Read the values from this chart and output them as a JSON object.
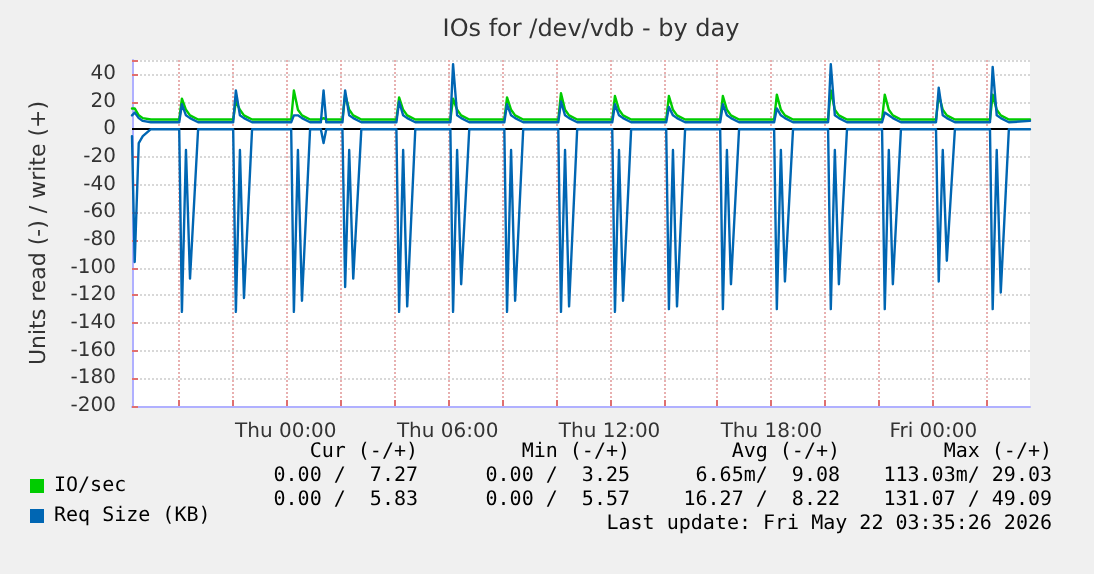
{
  "chart_data": {
    "type": "line",
    "title": "IOs for /dev/vdb - by day",
    "ylabel": "Units read (-) / write (+)",
    "x": [
      "2026-05-20T18:18",
      "2026-05-20T18:24",
      "2026-05-20T18:33",
      "2026-05-20T18:42",
      "2026-05-20T19:00",
      "2026-05-20T20:03",
      "2026-05-20T20:09",
      "2026-05-20T20:18",
      "2026-05-20T20:27",
      "2026-05-20T20:45",
      "2026-05-20T22:03",
      "2026-05-20T22:09",
      "2026-05-20T22:18",
      "2026-05-20T22:27",
      "2026-05-20T22:45",
      "2026-05-21T00:12",
      "2026-05-21T00:18",
      "2026-05-21T00:27",
      "2026-05-21T00:36",
      "2026-05-21T00:54",
      "2026-05-21T01:18",
      "2026-05-21T01:24",
      "2026-05-21T01:30",
      "2026-05-21T02:06",
      "2026-05-21T02:12",
      "2026-05-21T02:21",
      "2026-05-21T02:30",
      "2026-05-21T02:48",
      "2026-05-21T04:06",
      "2026-05-21T04:12",
      "2026-05-21T04:21",
      "2026-05-21T04:30",
      "2026-05-21T04:48",
      "2026-05-21T06:06",
      "2026-05-21T06:12",
      "2026-05-21T06:21",
      "2026-05-21T06:30",
      "2026-05-21T06:48",
      "2026-05-21T08:06",
      "2026-05-21T08:12",
      "2026-05-21T08:21",
      "2026-05-21T08:30",
      "2026-05-21T08:48",
      "2026-05-21T10:06",
      "2026-05-21T10:12",
      "2026-05-21T10:21",
      "2026-05-21T10:30",
      "2026-05-21T10:48",
      "2026-05-21T12:06",
      "2026-05-21T12:12",
      "2026-05-21T12:21",
      "2026-05-21T12:30",
      "2026-05-21T12:48",
      "2026-05-21T14:06",
      "2026-05-21T14:12",
      "2026-05-21T14:21",
      "2026-05-21T14:30",
      "2026-05-21T14:48",
      "2026-05-21T16:06",
      "2026-05-21T16:12",
      "2026-05-21T16:21",
      "2026-05-21T16:30",
      "2026-05-21T16:48",
      "2026-05-21T18:06",
      "2026-05-21T18:12",
      "2026-05-21T18:21",
      "2026-05-21T18:30",
      "2026-05-21T18:48",
      "2026-05-21T20:06",
      "2026-05-21T20:12",
      "2026-05-21T20:21",
      "2026-05-21T20:30",
      "2026-05-21T20:48",
      "2026-05-21T22:06",
      "2026-05-21T22:12",
      "2026-05-21T22:21",
      "2026-05-21T22:30",
      "2026-05-21T22:48",
      "2026-05-22T00:06",
      "2026-05-22T00:12",
      "2026-05-22T00:21",
      "2026-05-22T00:30",
      "2026-05-22T00:48",
      "2026-05-22T02:06",
      "2026-05-22T02:12",
      "2026-05-22T02:21",
      "2026-05-22T02:30",
      "2026-05-22T02:48",
      "2026-05-22T03:35"
    ],
    "series": [
      {
        "name": "IO/sec",
        "color": "#00cc00",
        "values": [
          15,
          15,
          10,
          8,
          7,
          7,
          22,
          14,
          10,
          7,
          7,
          20,
          14,
          10,
          7,
          7,
          28,
          14,
          10,
          7,
          7,
          8,
          7,
          7,
          25,
          14,
          10,
          7,
          7,
          23,
          14,
          10,
          7,
          7,
          22,
          14,
          10,
          7,
          7,
          23,
          14,
          10,
          7,
          7,
          26,
          14,
          10,
          7,
          7,
          24,
          14,
          10,
          7,
          7,
          24,
          14,
          10,
          7,
          7,
          24,
          14,
          10,
          7,
          7,
          25,
          14,
          10,
          7,
          7,
          28,
          14,
          10,
          7,
          7,
          25,
          14,
          10,
          7,
          7,
          25,
          14,
          10,
          7,
          7,
          25,
          14,
          10,
          7,
          7
        ]
      },
      {
        "name": "Req Size (KB)",
        "color": "#0066b3",
        "values": [
          10,
          12,
          8,
          6,
          5,
          5,
          18,
          10,
          8,
          5,
          5,
          28,
          10,
          8,
          5,
          5,
          10,
          10,
          8,
          5,
          5,
          28,
          5,
          5,
          28,
          10,
          8,
          5,
          5,
          20,
          10,
          8,
          5,
          5,
          47,
          10,
          8,
          5,
          5,
          18,
          10,
          8,
          5,
          5,
          20,
          10,
          8,
          5,
          5,
          18,
          10,
          8,
          5,
          5,
          16,
          10,
          8,
          5,
          5,
          18,
          10,
          8,
          5,
          5,
          15,
          10,
          8,
          5,
          5,
          47,
          10,
          8,
          5,
          5,
          12,
          10,
          8,
          5,
          5,
          30,
          10,
          8,
          5,
          5,
          45,
          10,
          8,
          5,
          6
        ]
      },
      {
        "color": "#0066b3",
        "values": [
          -5,
          -96,
          -10,
          -5,
          0,
          0,
          -132,
          -15,
          -108,
          0,
          0,
          -132,
          -15,
          -122,
          0,
          0,
          -132,
          -15,
          -124,
          0,
          0,
          -10,
          0,
          0,
          -114,
          -15,
          -108,
          0,
          0,
          -132,
          -15,
          -128,
          0,
          0,
          -132,
          -15,
          -112,
          0,
          0,
          -132,
          -15,
          -124,
          0,
          0,
          -132,
          -15,
          -128,
          0,
          0,
          -132,
          -15,
          -124,
          0,
          0,
          -130,
          -15,
          -128,
          0,
          0,
          -130,
          -15,
          -112,
          0,
          0,
          -130,
          -15,
          -110,
          0,
          0,
          -130,
          -15,
          -112,
          0,
          0,
          -130,
          -15,
          -112,
          0,
          0,
          -110,
          -15,
          -95,
          0,
          0,
          -130,
          -15,
          -118,
          0,
          0
        ]
      }
    ],
    "xlim": [
      "2026-05-20T18:18",
      "2026-05-22T03:35"
    ],
    "xticks": [
      {
        "value": "2026-05-20T20:00",
        "label": null
      },
      {
        "value": "2026-05-20T22:00",
        "label": null
      },
      {
        "value": "2026-05-21T00:00",
        "label": "Thu 00:00"
      },
      {
        "value": "2026-05-21T02:00",
        "label": null
      },
      {
        "value": "2026-05-21T04:00",
        "label": null
      },
      {
        "value": "2026-05-21T06:00",
        "label": "Thu 06:00"
      },
      {
        "value": "2026-05-21T08:00",
        "label": null
      },
      {
        "value": "2026-05-21T10:00",
        "label": null
      },
      {
        "value": "2026-05-21T12:00",
        "label": "Thu 12:00"
      },
      {
        "value": "2026-05-21T14:00",
        "label": null
      },
      {
        "value": "2026-05-21T16:00",
        "label": null
      },
      {
        "value": "2026-05-21T18:00",
        "label": "Thu 18:00"
      },
      {
        "value": "2026-05-21T20:00",
        "label": null
      },
      {
        "value": "2026-05-21T22:00",
        "label": null
      },
      {
        "value": "2026-05-22T00:00",
        "label": "Fri 00:00"
      },
      {
        "value": "2026-05-22T02:00",
        "label": null
      }
    ],
    "ylim": [
      -200,
      50
    ],
    "yticks": [
      -200,
      -180,
      -160,
      -140,
      -120,
      -100,
      -80,
      -60,
      -40,
      -20,
      0,
      20,
      40
    ],
    "ref_lines": [
      {
        "axis": "y",
        "value": 0,
        "color": "#000000"
      }
    ],
    "grid": true,
    "legend": "bottom left",
    "marker": "none",
    "line_style": "solid",
    "annotations": [
      "Cur (-/+)",
      "Min (-/+)",
      "Avg (-/+)",
      "Max (-/+)",
      "0.00 /  7.27",
      "0.00 /  3.25",
      "6.65m/  9.08",
      "113.03m/ 29.03",
      "0.00 /  5.83",
      "0.00 /  5.57",
      "16.27 /  8.22",
      "131.07 / 49.09",
      "Last update: Fri May 22 03:35:26 2026"
    ]
  }
}
